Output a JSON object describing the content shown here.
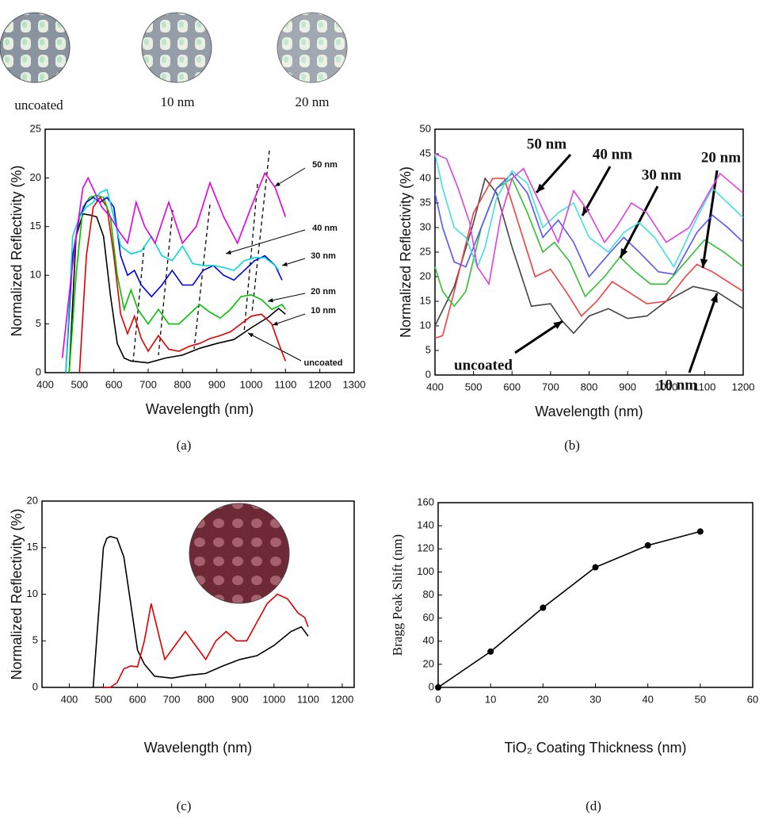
{
  "chart_data": [
    {
      "type": "line",
      "caption": "(a)",
      "xlabel": "Wavelength (nm)",
      "ylabel": "Normalized Reflectivity (%)",
      "image_labels": [
        "uncoated",
        "10 nm",
        "20 nm"
      ],
      "xlim": [
        400,
        1300
      ],
      "xticks": [
        400,
        500,
        600,
        700,
        800,
        900,
        1000,
        1100,
        1200,
        1300
      ],
      "ylim": [
        0,
        25
      ],
      "yticks": [
        0,
        5,
        10,
        15,
        20,
        25
      ],
      "series": [
        {
          "name": "uncoated",
          "color": "#000000",
          "x": [
            470,
            490,
            510,
            530,
            550,
            570,
            590,
            610,
            630,
            650,
            700,
            750,
            800,
            850,
            900,
            950,
            1000,
            1050,
            1080,
            1100
          ],
          "values": [
            0,
            14,
            16.3,
            16.2,
            16,
            14,
            8,
            3,
            1.5,
            1.2,
            1,
            1.5,
            1.8,
            2.5,
            3,
            3.4,
            4.6,
            5.7,
            6.6,
            6.0
          ]
        },
        {
          "name": "10 nm",
          "color": "#e00000",
          "x": [
            500,
            520,
            540,
            560,
            580,
            600,
            620,
            640,
            660,
            680,
            700,
            730,
            760,
            790,
            820,
            850,
            880,
            910,
            940,
            970,
            1000,
            1030,
            1060,
            1080,
            1100
          ],
          "values": [
            0,
            12,
            17,
            18,
            17,
            12,
            6,
            4,
            5.8,
            3.5,
            2.2,
            3.8,
            2.4,
            2.2,
            2.7,
            3,
            3.5,
            3.8,
            4.2,
            5.0,
            5.8,
            6,
            5,
            3,
            1.2
          ]
        },
        {
          "name": "20 nm",
          "color": "#00c000",
          "x": [
            470,
            490,
            510,
            530,
            550,
            570,
            590,
            610,
            630,
            650,
            670,
            700,
            730,
            760,
            790,
            820,
            850,
            880,
            910,
            940,
            970,
            1000,
            1030,
            1060,
            1090,
            1100
          ],
          "values": [
            0,
            10,
            17,
            18,
            18.2,
            18,
            16,
            10,
            6.5,
            8.5,
            6.5,
            5,
            6.5,
            5,
            5,
            6,
            7,
            6.2,
            5.6,
            6.5,
            7.8,
            8,
            7.5,
            6.5,
            7,
            6.5
          ]
        },
        {
          "name": "30 nm",
          "color": "#0000dd",
          "x": [
            460,
            480,
            500,
            520,
            540,
            560,
            580,
            600,
            620,
            640,
            660,
            680,
            710,
            740,
            770,
            800,
            830,
            860,
            890,
            920,
            950,
            980,
            1010,
            1040,
            1070,
            1090
          ],
          "values": [
            0,
            12,
            16,
            17.5,
            18,
            17.5,
            18,
            17,
            12,
            10,
            10.5,
            9,
            7.8,
            9,
            10.5,
            9,
            9,
            10.5,
            11,
            10,
            9.5,
            10.5,
            11.5,
            12,
            11,
            9.5
          ]
        },
        {
          "name": "40 nm",
          "color": "#00d8d8",
          "x": [
            460,
            480,
            500,
            520,
            540,
            560,
            580,
            600,
            620,
            650,
            680,
            710,
            740,
            770,
            800,
            830,
            860,
            890,
            920,
            950,
            980,
            1010,
            1040,
            1070,
            1080
          ],
          "values": [
            0,
            14,
            16,
            17,
            17.5,
            18.5,
            18.8,
            16,
            13,
            12.2,
            12.5,
            14,
            12,
            11.5,
            13,
            11.2,
            11,
            11,
            10.8,
            10.5,
            11.5,
            11.8,
            11.8,
            11,
            10.5
          ]
        },
        {
          "name": "50 nm",
          "color": "#e000e0",
          "x": [
            450,
            470,
            490,
            510,
            525,
            545,
            565,
            590,
            615,
            640,
            665,
            690,
            720,
            760,
            800,
            840,
            880,
            920,
            960,
            1000,
            1040,
            1070,
            1090,
            1100
          ],
          "values": [
            1.5,
            8,
            14,
            19,
            20,
            18.5,
            17,
            16,
            14.5,
            13.3,
            17.5,
            15,
            13.3,
            17.5,
            13.3,
            15,
            19.5,
            16,
            13.3,
            17,
            20.5,
            19,
            17,
            16
          ]
        }
      ]
    },
    {
      "type": "line",
      "caption": "(b)",
      "xlabel": "Wavelength (nm)",
      "ylabel": "Normalized Reflectivity (%)",
      "xlim": [
        400,
        1200
      ],
      "xticks": [
        400,
        500,
        600,
        700,
        800,
        900,
        1000,
        1100,
        1200
      ],
      "ylim": [
        0,
        50
      ],
      "yticks": [
        0,
        5,
        10,
        15,
        20,
        25,
        30,
        35,
        40,
        45,
        50
      ],
      "series": [
        {
          "name": "uncoated",
          "color": "#444444",
          "x": [
            400,
            450,
            500,
            530,
            560,
            600,
            650,
            700,
            730,
            760,
            800,
            850,
            900,
            950,
            1000,
            1070,
            1130,
            1200
          ],
          "values": [
            10,
            18,
            31,
            40,
            37,
            26,
            14,
            14.5,
            11,
            8.5,
            12,
            13.5,
            11.5,
            12,
            15,
            18,
            17,
            13.5
          ]
        },
        {
          "name": "10 nm",
          "color": "#f04040",
          "x": [
            400,
            420,
            450,
            500,
            550,
            580,
            620,
            660,
            700,
            740,
            780,
            820,
            860,
            900,
            950,
            1000,
            1050,
            1080,
            1120,
            1160,
            1200
          ],
          "values": [
            7.5,
            8,
            17,
            33,
            40,
            40,
            30,
            20,
            21.5,
            17,
            12,
            15,
            19,
            17,
            14.5,
            15,
            20,
            22.5,
            21,
            19,
            17
          ]
        },
        {
          "name": "20 nm",
          "color": "#30c030",
          "x": [
            400,
            420,
            450,
            480,
            520,
            560,
            600,
            640,
            680,
            710,
            750,
            790,
            840,
            880,
            920,
            960,
            1000,
            1050,
            1100,
            1150,
            1200
          ],
          "values": [
            22,
            17,
            14,
            17,
            30,
            38,
            40,
            33,
            25,
            27,
            23,
            16,
            20,
            24,
            21,
            18.5,
            18.5,
            23,
            27.5,
            25,
            22
          ]
        },
        {
          "name": "30 nm",
          "color": "#5555f5",
          "x": [
            400,
            420,
            450,
            480,
            510,
            560,
            600,
            640,
            680,
            720,
            760,
            800,
            850,
            890,
            930,
            980,
            1020,
            1080,
            1120,
            1160,
            1200
          ],
          "values": [
            37,
            30,
            23,
            22,
            28,
            38,
            41,
            37,
            28,
            31.5,
            27,
            20,
            24.5,
            28,
            25,
            21,
            20.5,
            29,
            32.5,
            30,
            27
          ]
        },
        {
          "name": "40 nm",
          "color": "#40e0e0",
          "x": [
            400,
            420,
            450,
            480,
            510,
            530,
            560,
            600,
            640,
            680,
            720,
            760,
            800,
            850,
            890,
            930,
            970,
            1020,
            1080,
            1120,
            1160,
            1200
          ],
          "values": [
            45,
            38,
            30,
            28,
            22,
            26,
            36,
            41.5,
            39,
            30,
            33,
            35,
            28,
            25,
            29,
            31,
            28,
            22,
            32,
            38,
            35,
            32
          ]
        },
        {
          "name": "50 nm",
          "color": "#e040e0",
          "x": [
            400,
            430,
            460,
            490,
            510,
            540,
            570,
            600,
            630,
            660,
            690,
            720,
            760,
            800,
            840,
            870,
            910,
            950,
            1000,
            1060,
            1110,
            1140,
            1170,
            1200
          ],
          "values": [
            45,
            44,
            38,
            31,
            22,
            18.5,
            32,
            40,
            42,
            37,
            32,
            27,
            37.5,
            33,
            27,
            30,
            35,
            33,
            27,
            30,
            37,
            41,
            39,
            37
          ]
        }
      ]
    },
    {
      "type": "line",
      "caption": "(c)",
      "xlabel": "Wavelength (nm)",
      "ylabel": "Normalized Reflectivity (%)",
      "xlim": [
        320,
        1235
      ],
      "xticks": [
        400,
        500,
        600,
        700,
        800,
        900,
        1000,
        1100,
        1200
      ],
      "ylim": [
        0,
        20
      ],
      "yticks": [
        0,
        5,
        10,
        15,
        20
      ],
      "series": [
        {
          "color": "#000000",
          "x": [
            470,
            490,
            500,
            510,
            520,
            540,
            560,
            580,
            600,
            620,
            650,
            700,
            750,
            800,
            850,
            900,
            950,
            1000,
            1050,
            1080,
            1100
          ],
          "values": [
            0,
            10,
            15,
            16,
            16.2,
            16,
            14,
            9,
            4,
            2.5,
            1.2,
            1,
            1.3,
            1.5,
            2.3,
            3,
            3.4,
            4.5,
            6,
            6.5,
            5.5
          ]
        },
        {
          "color": "#e00000",
          "x": [
            500,
            520,
            540,
            560,
            580,
            600,
            620,
            640,
            660,
            680,
            710,
            740,
            770,
            800,
            830,
            860,
            890,
            920,
            950,
            980,
            1010,
            1040,
            1070,
            1090,
            1100
          ],
          "values": [
            0,
            0,
            0.5,
            2,
            2.3,
            2.2,
            5,
            9,
            6,
            3,
            4.5,
            6,
            4.5,
            3,
            5,
            6,
            5,
            5,
            7,
            9,
            10,
            9.5,
            8,
            7.5,
            6.5
          ]
        }
      ]
    },
    {
      "type": "line",
      "caption": "(d)",
      "xlabel": "TiO₂ Coating Thickness (nm)",
      "ylabel": "Bragg Peak Shift (nm)",
      "markers": true,
      "xlim": [
        0,
        60
      ],
      "xticks": [
        0,
        10,
        20,
        30,
        40,
        50,
        60
      ],
      "ylim": [
        0,
        160
      ],
      "yticks": [
        0,
        20,
        40,
        60,
        80,
        100,
        120,
        140,
        160
      ],
      "series": [
        {
          "color": "#000000",
          "x": [
            0,
            10,
            20,
            30,
            40,
            50
          ],
          "values": [
            0,
            31,
            69,
            104,
            123,
            135
          ]
        }
      ]
    }
  ]
}
